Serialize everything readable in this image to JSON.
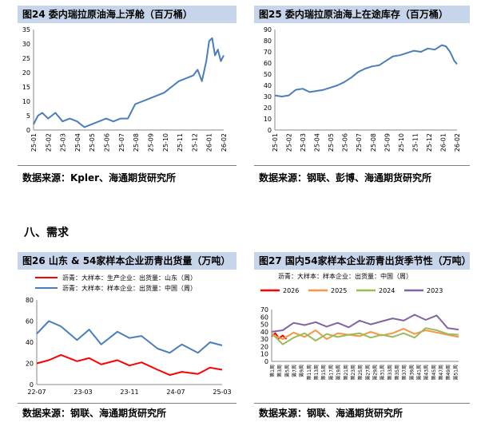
{
  "section": {
    "label": "八、需求"
  },
  "charts": [
    {
      "figure_title": "图24  委内瑞拉原油海上浮舱（百万桶）",
      "source": "数据来源：Kpler、海通期货研究所"
    },
    {
      "figure_title": "图25  委内瑞拉原油海上在途库存（百万桶）",
      "source": "数据来源：钢联、彭博、海通期货研究所"
    },
    {
      "figure_title": "图26  山东 & 54家样本企业沥青出货量（万吨）",
      "source": "数据来源：钢联、海通期货研究所"
    },
    {
      "figure_title": "图27  国内54家样本企业沥青出货季节性（万吨）",
      "source": "数据来源：钢联、海通期货研究所"
    }
  ],
  "chart_data": [
    {
      "type": "line",
      "title": "图24  委内瑞拉原油海上浮舱（百万桶）",
      "ylim": [
        0,
        35
      ],
      "yticks": [
        0,
        5,
        10,
        15,
        20,
        25,
        30,
        35
      ],
      "xticks": [
        "25-01",
        "25-02",
        "25-03",
        "25-04",
        "25-05",
        "25-06",
        "25-07",
        "25-08",
        "25-09",
        "25-10",
        "25-11",
        "25-12",
        "26-01",
        "26-02"
      ],
      "series": [
        {
          "color": "#4a7ebb",
          "x": [
            0,
            0.3,
            0.6,
            1.0,
            1.5,
            2.0,
            2.5,
            3.0,
            3.5,
            4.0,
            4.5,
            5.0,
            5.5,
            6.0,
            6.5,
            7.0,
            7.5,
            8.0,
            8.5,
            9.0,
            9.5,
            10.0,
            10.5,
            11.0,
            11.3,
            11.6,
            11.9,
            12.1,
            12.3,
            12.5,
            12.7,
            12.9,
            13.1
          ],
          "y": [
            2,
            5,
            6,
            4,
            6,
            3,
            4,
            3,
            1,
            2,
            3,
            4,
            3,
            4,
            4,
            9,
            10,
            11,
            12,
            13,
            15,
            17,
            18,
            19,
            21,
            17,
            24,
            31,
            32,
            26,
            28,
            24,
            26
          ]
        }
      ],
      "grid": false
    },
    {
      "type": "line",
      "title": "图25  委内瑞拉原油海上在途库存（百万桶）",
      "ylim": [
        0,
        90
      ],
      "yticks": [
        0,
        10,
        20,
        30,
        40,
        50,
        60,
        70,
        80,
        90
      ],
      "xticks": [
        "25-01",
        "25-02",
        "25-03",
        "25-04",
        "25-05",
        "25-06",
        "25-07",
        "25-08",
        "25-09",
        "25-10",
        "25-11",
        "25-12",
        "26-01",
        "26-02"
      ],
      "series": [
        {
          "color": "#4a7ebb",
          "x": [
            0,
            0.5,
            1.0,
            1.5,
            2.0,
            2.5,
            3.0,
            3.5,
            4.0,
            4.5,
            5.0,
            5.5,
            6.0,
            6.5,
            7.0,
            7.5,
            8.0,
            8.5,
            9.0,
            9.5,
            10.0,
            10.5,
            11.0,
            11.5,
            12.0,
            12.3,
            12.6,
            12.9,
            13.1
          ],
          "y": [
            31,
            30,
            31,
            36,
            37,
            34,
            35,
            36,
            38,
            40,
            43,
            47,
            52,
            55,
            57,
            58,
            62,
            66,
            67,
            69,
            71,
            70,
            73,
            72,
            76,
            75,
            70,
            62,
            59
          ]
        }
      ],
      "grid": false
    },
    {
      "type": "line",
      "title": "图26  山东 & 54家样本企业沥青出货量（万吨）",
      "ylim": [
        0,
        80
      ],
      "yticks": [
        0,
        20,
        40,
        60,
        80
      ],
      "xticks": [
        "22-07",
        "23-03",
        "23-11",
        "24-07",
        "25-03"
      ],
      "legend": [
        "沥青：大样本：生产企业：出货量：山东（周）",
        "沥青：大样本：样本企业：出货量：中国（周）"
      ],
      "legend_position": "top-left",
      "series": [
        {
          "name": "沥青：大样本：生产企业：出货量：山东（周）",
          "color": "#ff0000",
          "x": [
            0,
            0.3,
            0.6,
            1.0,
            1.3,
            1.6,
            2.0,
            2.3,
            2.6,
            3.0,
            3.3,
            3.6,
            4.0,
            4.3,
            4.6
          ],
          "y": [
            20,
            23,
            28,
            22,
            25,
            19,
            23,
            18,
            21,
            14,
            9,
            12,
            10,
            16,
            14
          ]
        },
        {
          "name": "沥青：大样本：样本企业：出货量：中国（周）",
          "color": "#4a7ebb",
          "x": [
            0,
            0.3,
            0.6,
            1.0,
            1.3,
            1.6,
            2.0,
            2.3,
            2.6,
            3.0,
            3.3,
            3.6,
            4.0,
            4.3,
            4.6
          ],
          "y": [
            48,
            60,
            55,
            42,
            52,
            38,
            50,
            44,
            46,
            34,
            30,
            38,
            30,
            40,
            37
          ]
        }
      ],
      "grid": false
    },
    {
      "type": "line",
      "title": "图27  国内54家样本企业沥青出货季节性（万吨）",
      "ylim": [
        0,
        70
      ],
      "yticks": [
        0,
        10,
        20,
        30,
        40,
        50,
        60,
        70
      ],
      "subtitle": "沥青：大样本：样本企业：出货量：中国（周）",
      "legend_position": "top",
      "series": [
        {
          "name": "2026",
          "color": "#ff0000",
          "x": [
            1,
            2,
            3,
            4,
            5
          ],
          "y": [
            34,
            38,
            31,
            35,
            30
          ]
        },
        {
          "name": "2025",
          "color": "#f79646",
          "x": [
            1,
            4,
            7,
            10,
            13,
            16,
            19,
            22,
            25,
            28,
            31,
            34,
            37,
            40,
            43,
            46,
            49,
            52
          ],
          "y": [
            36,
            30,
            39,
            33,
            42,
            30,
            38,
            36,
            34,
            40,
            35,
            38,
            44,
            37,
            42,
            39,
            36,
            33
          ]
        },
        {
          "name": "2024",
          "color": "#9bbb59",
          "x": [
            1,
            4,
            7,
            10,
            13,
            16,
            19,
            22,
            25,
            28,
            31,
            34,
            37,
            40,
            43,
            46,
            49,
            52
          ],
          "y": [
            38,
            23,
            32,
            38,
            28,
            37,
            33,
            36,
            38,
            32,
            36,
            33,
            38,
            32,
            45,
            42,
            37,
            36
          ]
        },
        {
          "name": "2023",
          "color": "#8064a2",
          "x": [
            1,
            4,
            7,
            10,
            13,
            16,
            19,
            22,
            25,
            28,
            31,
            34,
            37,
            40,
            43,
            46,
            49,
            52
          ],
          "y": [
            40,
            42,
            52,
            49,
            53,
            47,
            52,
            46,
            55,
            50,
            54,
            58,
            55,
            63,
            56,
            62,
            45,
            43
          ]
        }
      ],
      "xticks": [
        "第1周",
        "第3周",
        "第5周",
        "第7周",
        "第9周",
        "第11周",
        "第13周",
        "第15周",
        "第17周",
        "第19周",
        "第21周",
        "第23周",
        "第25周",
        "第27周",
        "第29周",
        "第31周",
        "第33周",
        "第35周",
        "第37周",
        "第39周",
        "第41周",
        "第43周",
        "第45周",
        "第47周",
        "第49周",
        "第51周"
      ],
      "grid": false
    }
  ]
}
